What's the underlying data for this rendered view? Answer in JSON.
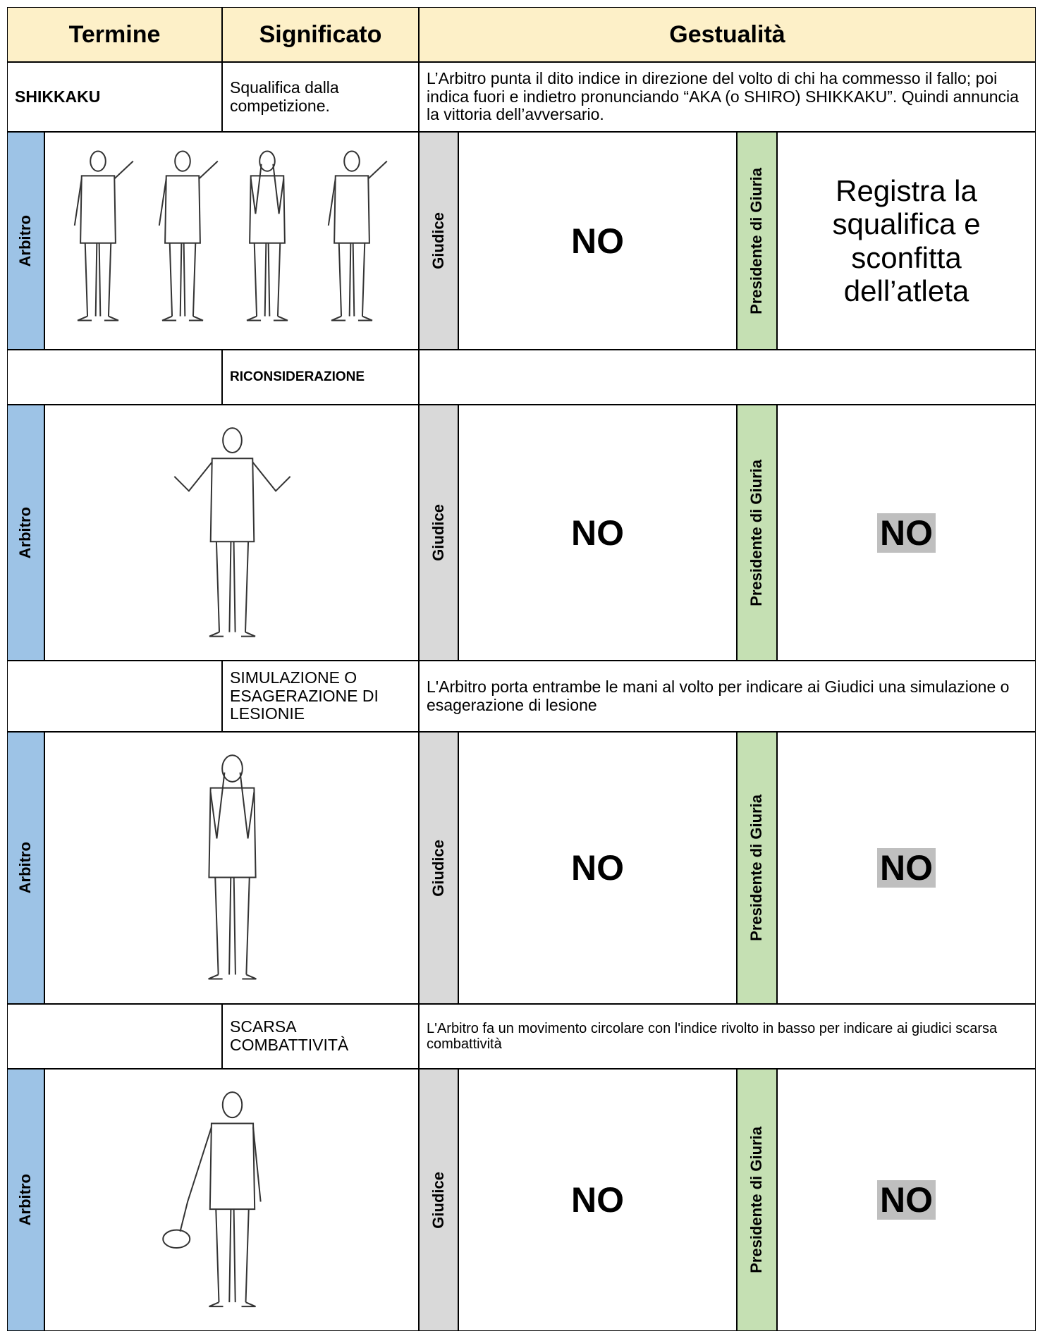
{
  "header": {
    "termine": "Termine",
    "significato": "Significato",
    "gestualita": "Gestualità"
  },
  "rows": [
    {
      "termine": "SHIKKAKU",
      "significato": "Squalifica dalla competizione.",
      "gestualita": "L’Arbitro punta il dito indice in direzione del volto di chi ha commesso il fallo; poi indica fuori e indietro pronunciando “AKA (o SHIRO) SHIKKAKU”. Quindi annuncia la vittoria dell’avversario.",
      "arbitro": "Arbitro",
      "giudice": "Giudice",
      "giudice_value": "NO",
      "presidente": "Presidente di Giuria",
      "presidente_value": "Registra la squalifica e sconfitta dell’atleta"
    },
    {
      "significato": "RICONSIDERAZIONE",
      "arbitro": "Arbitro",
      "giudice": "Giudice",
      "giudice_value": "NO",
      "presidente": "Presidente di Giuria",
      "presidente_value": "NO"
    },
    {
      "significato": "SIMULAZIONE O ESAGERAZIONE DI LESIONIE",
      "gestualita": "L'Arbitro porta entrambe le mani al volto per indicare ai Giudici una simulazione o esagerazione di lesione",
      "arbitro": "Arbitro",
      "giudice": "Giudice",
      "giudice_value": "NO",
      "presidente": "Presidente di Giuria",
      "presidente_value": "NO"
    },
    {
      "significato": "SCARSA COMBATTIVITÀ",
      "gestualita": "L'Arbitro fa un movimento circolare con l'indice rivolto in basso per indicare ai giudici scarsa combattività",
      "arbitro": "Arbitro",
      "giudice": "Giudice",
      "giudice_value": "NO",
      "presidente": "Presidente di Giuria",
      "presidente_value": "NO"
    }
  ]
}
